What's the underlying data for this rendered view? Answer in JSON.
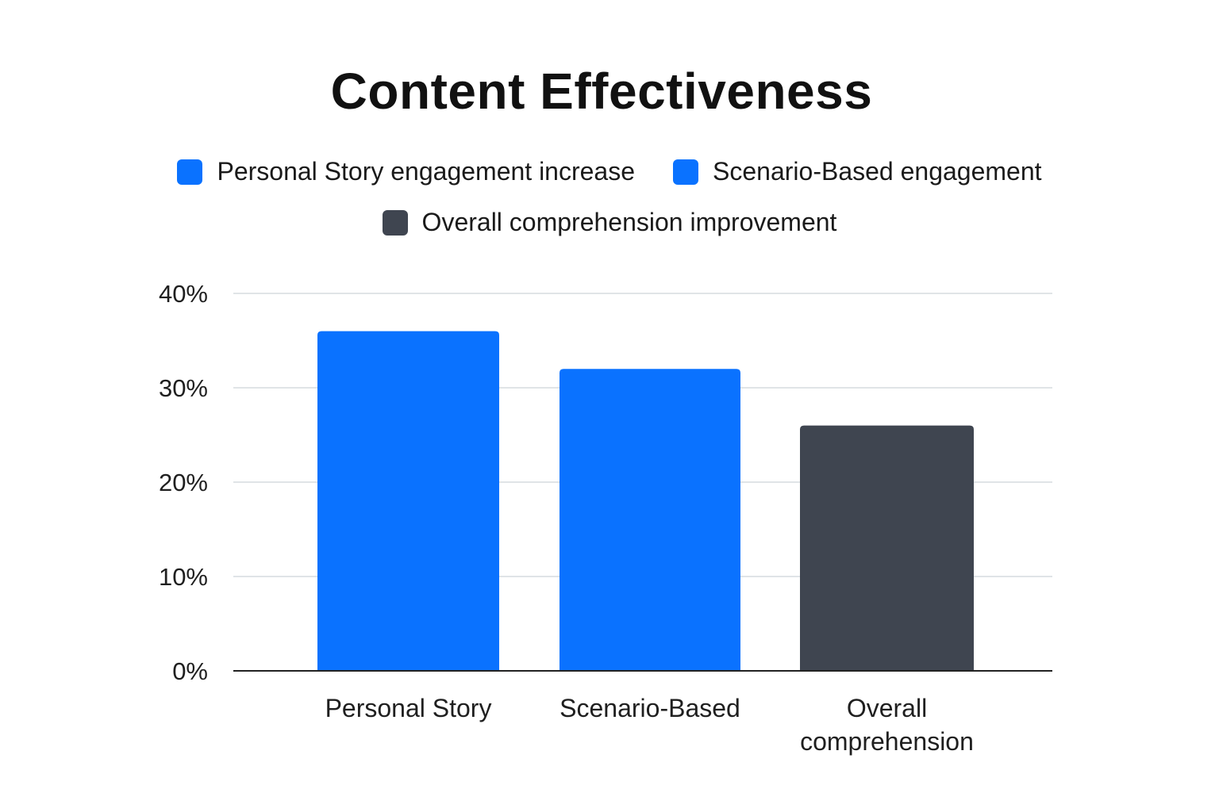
{
  "chart_data": {
    "type": "bar",
    "title": "Content Effectiveness",
    "categories": [
      "Personal Story",
      "Scenario-Based",
      "Overall comprehension"
    ],
    "category_lines": [
      [
        "Personal Story"
      ],
      [
        "Scenario-Based"
      ],
      [
        "Overall",
        "comprehension"
      ]
    ],
    "values": [
      36,
      32,
      26
    ],
    "bar_colors": [
      "#0a72ff",
      "#0a72ff",
      "#3f4550"
    ],
    "legend": [
      {
        "label": "Personal Story engagement increase",
        "color": "#0a72ff"
      },
      {
        "label": "Scenario-Based engagement",
        "color": "#0a72ff"
      },
      {
        "label": "Overall comprehension improvement",
        "color": "#3f4550"
      }
    ],
    "legend_placement": "top",
    "ylim": [
      0,
      40
    ],
    "yticks": [
      0,
      10,
      20,
      30,
      40
    ],
    "ytick_labels": [
      "0%",
      "10%",
      "20%",
      "30%",
      "40%"
    ],
    "xlabel": "",
    "ylabel": "",
    "grid": true,
    "colors": {
      "grid": "#d5dbdf",
      "axis": "#222222"
    }
  }
}
